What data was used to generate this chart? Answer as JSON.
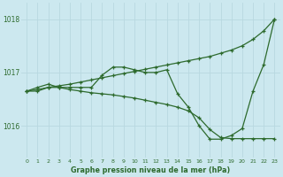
{
  "xlabel": "Graphe pression niveau de la mer (hPa)",
  "background_color": "#cce8ef",
  "grid_color": "#aad4dc",
  "line_color": "#2d6a2d",
  "ylim": [
    1015.4,
    1018.3
  ],
  "xlim": [
    -0.5,
    23.5
  ],
  "yticks": [
    1016,
    1017,
    1018
  ],
  "xticks": [
    0,
    1,
    2,
    3,
    4,
    5,
    6,
    7,
    8,
    9,
    10,
    11,
    12,
    13,
    14,
    15,
    16,
    17,
    18,
    19,
    20,
    21,
    22,
    23
  ],
  "series": [
    {
      "x": [
        0,
        1,
        2,
        3,
        4,
        5,
        6,
        7,
        8,
        9,
        10,
        11,
        12,
        13,
        14,
        15,
        16,
        17,
        18,
        19,
        20,
        21,
        22,
        23
      ],
      "y": [
        1016.65,
        1016.68,
        1016.72,
        1016.75,
        1016.78,
        1016.82,
        1016.86,
        1016.9,
        1016.94,
        1016.98,
        1017.02,
        1017.06,
        1017.1,
        1017.14,
        1017.18,
        1017.22,
        1017.26,
        1017.3,
        1017.36,
        1017.42,
        1017.5,
        1017.62,
        1017.78,
        1018.0
      ]
    },
    {
      "x": [
        0,
        1,
        2,
        3,
        4,
        5,
        6,
        7,
        8,
        9,
        10,
        11,
        12,
        13,
        14,
        15,
        16,
        17,
        18,
        19,
        20,
        21,
        22,
        23
      ],
      "y": [
        1016.65,
        1016.72,
        1016.78,
        1016.72,
        1016.72,
        1016.72,
        1016.72,
        1016.95,
        1017.1,
        1017.1,
        1017.05,
        1017.0,
        1017.0,
        1017.05,
        1016.6,
        1016.35,
        1016.0,
        1015.75,
        1015.75,
        1015.82,
        1015.95,
        1016.65,
        1017.15,
        1018.0
      ]
    },
    {
      "x": [
        0,
        1,
        2,
        3,
        4,
        5,
        6,
        7,
        8,
        9,
        10,
        11,
        12,
        13,
        14,
        15,
        16,
        17,
        18,
        19,
        20,
        21,
        22,
        23
      ],
      "y": [
        1016.65,
        1016.65,
        1016.72,
        1016.72,
        1016.68,
        1016.65,
        1016.62,
        1016.6,
        1016.58,
        1016.55,
        1016.52,
        1016.48,
        1016.44,
        1016.4,
        1016.35,
        1016.28,
        1016.15,
        1015.93,
        1015.78,
        1015.76,
        1015.76,
        1015.76,
        1015.76,
        1015.76
      ]
    }
  ]
}
